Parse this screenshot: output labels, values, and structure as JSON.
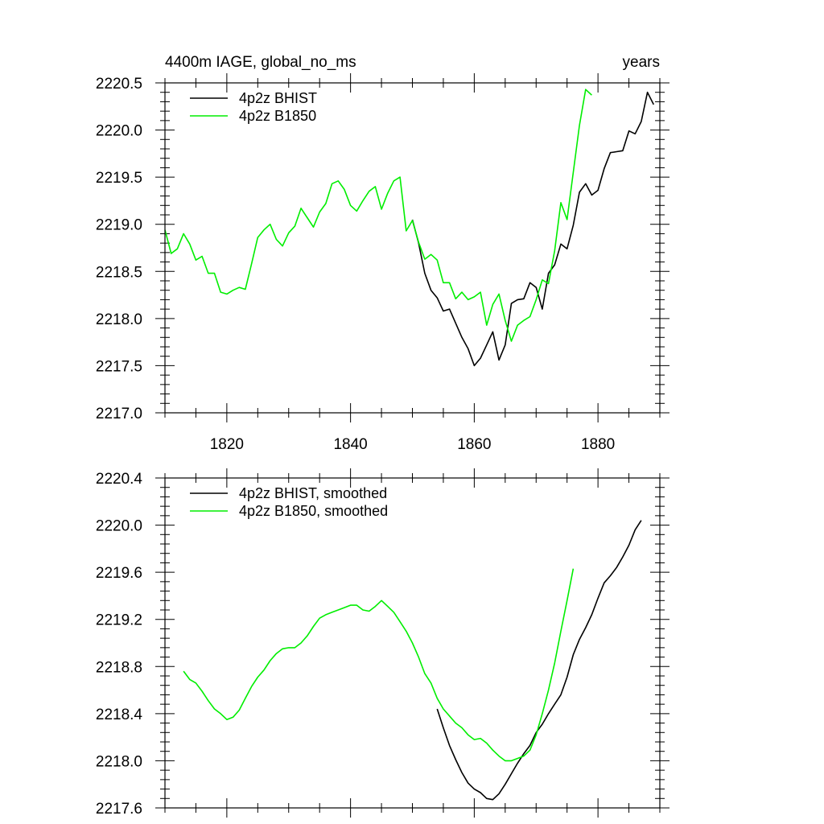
{
  "figure": {
    "title_left": "4400m IAGE, global_no_ms",
    "title_right": "years"
  },
  "colors": {
    "bhist": "#000000",
    "b1850": "#00ee00"
  },
  "chart_data": [
    {
      "type": "line",
      "title": "4400m IAGE, global_no_ms",
      "units": "years",
      "xlim": [
        1810,
        1890
      ],
      "ylim": [
        2217.0,
        2220.5
      ],
      "x_ticks": [
        1820,
        1840,
        1860,
        1880
      ],
      "x_tick_labels": [
        "1820",
        "1840",
        "1860",
        "1880"
      ],
      "y_ticks": [
        2217.0,
        2217.5,
        2218.0,
        2218.5,
        2219.0,
        2219.5,
        2220.0,
        2220.5
      ],
      "y_tick_labels": [
        "2217.0",
        "2217.5",
        "2218.0",
        "2218.5",
        "2219.0",
        "2219.5",
        "2220.0",
        "2220.5"
      ],
      "legend_position": "top-left",
      "series": [
        {
          "name": "4p2z BHIST",
          "x": [
            1850,
            1851,
            1852,
            1853,
            1854,
            1855,
            1856,
            1857,
            1858,
            1859,
            1860,
            1861,
            1862,
            1863,
            1864,
            1865,
            1866,
            1867,
            1868,
            1869,
            1870,
            1871,
            1872,
            1873,
            1874,
            1875,
            1876,
            1877,
            1878,
            1879,
            1880,
            1881,
            1882,
            1883,
            1884,
            1885,
            1886,
            1887,
            1888,
            1889
          ],
          "y": [
            2219.05,
            2218.8,
            2218.48,
            2218.3,
            2218.22,
            2218.08,
            2218.1,
            2217.95,
            2217.8,
            2217.68,
            2217.5,
            2217.58,
            2217.72,
            2217.86,
            2217.56,
            2217.72,
            2218.16,
            2218.2,
            2218.21,
            2218.38,
            2218.33,
            2218.1,
            2218.48,
            2218.57,
            2218.79,
            2218.74,
            2218.99,
            2219.34,
            2219.43,
            2219.31,
            2219.36,
            2219.59,
            2219.76,
            2219.77,
            2219.78,
            2219.99,
            2219.96,
            2220.09,
            2220.4,
            2220.27
          ]
        },
        {
          "name": "4p2z B1850",
          "x": [
            1810,
            1811,
            1812,
            1813,
            1814,
            1815,
            1816,
            1817,
            1818,
            1819,
            1820,
            1821,
            1822,
            1823,
            1824,
            1825,
            1826,
            1827,
            1828,
            1829,
            1830,
            1831,
            1832,
            1833,
            1834,
            1835,
            1836,
            1837,
            1838,
            1839,
            1840,
            1841,
            1842,
            1843,
            1844,
            1845,
            1846,
            1847,
            1848,
            1849,
            1850,
            1851,
            1852,
            1853,
            1854,
            1855,
            1856,
            1857,
            1858,
            1859,
            1860,
            1861,
            1862,
            1863,
            1864,
            1865,
            1866,
            1867,
            1868,
            1869,
            1870,
            1871,
            1872,
            1873,
            1874,
            1875,
            1876,
            1877,
            1878,
            1879
          ],
          "y": [
            2218.94,
            2218.69,
            2218.74,
            2218.9,
            2218.79,
            2218.62,
            2218.66,
            2218.48,
            2218.48,
            2218.28,
            2218.26,
            2218.3,
            2218.33,
            2218.31,
            2218.58,
            2218.86,
            2218.94,
            2219.0,
            2218.84,
            2218.77,
            2218.91,
            2218.98,
            2219.17,
            2219.07,
            2218.97,
            2219.13,
            2219.22,
            2219.43,
            2219.46,
            2219.37,
            2219.2,
            2219.14,
            2219.25,
            2219.35,
            2219.4,
            2219.16,
            2219.33,
            2219.46,
            2219.5,
            2218.93,
            2219.04,
            2218.81,
            2218.63,
            2218.68,
            2218.62,
            2218.38,
            2218.38,
            2218.21,
            2218.28,
            2218.2,
            2218.23,
            2218.28,
            2217.93,
            2218.15,
            2218.26,
            2217.98,
            2217.76,
            2217.93,
            2217.98,
            2218.02,
            2218.2,
            2218.41,
            2218.37,
            2218.72,
            2219.23,
            2219.05,
            2219.55,
            2220.05,
            2220.43,
            2220.37
          ]
        }
      ]
    },
    {
      "type": "line",
      "xlim": [
        1810,
        1890
      ],
      "ylim": [
        2217.6,
        2220.4
      ],
      "x_ticks": [
        1820,
        1840,
        1860,
        1880
      ],
      "x_tick_labels": [],
      "y_ticks": [
        2217.6,
        2218.0,
        2218.4,
        2218.8,
        2219.2,
        2219.6,
        2220.0,
        2220.4
      ],
      "y_tick_labels": [
        "2217.6",
        "2218.0",
        "2218.4",
        "2218.8",
        "2219.2",
        "2219.6",
        "2220.0",
        "2220.4"
      ],
      "legend_position": "top-left",
      "series": [
        {
          "name": "4p2z BHIST, smoothed",
          "x": [
            1854,
            1855,
            1856,
            1857,
            1858,
            1859,
            1860,
            1861,
            1862,
            1863,
            1864,
            1865,
            1866,
            1867,
            1868,
            1869,
            1870,
            1871,
            1872,
            1873,
            1874,
            1875,
            1876,
            1877,
            1878,
            1879,
            1880,
            1881,
            1882,
            1883,
            1884,
            1885,
            1886,
            1887
          ],
          "y": [
            2218.44,
            2218.28,
            2218.13,
            2218.01,
            2217.9,
            2217.81,
            2217.76,
            2217.73,
            2217.68,
            2217.67,
            2217.72,
            2217.8,
            2217.89,
            2217.98,
            2218.06,
            2218.13,
            2218.24,
            2218.31,
            2218.4,
            2218.48,
            2218.56,
            2218.71,
            2218.9,
            2219.03,
            2219.13,
            2219.24,
            2219.38,
            2219.51,
            2219.57,
            2219.64,
            2219.73,
            2219.83,
            2219.96,
            2220.04
          ]
        },
        {
          "name": "4p2z B1850, smoothed",
          "x": [
            1813,
            1814,
            1815,
            1816,
            1817,
            1818,
            1819,
            1820,
            1821,
            1822,
            1823,
            1824,
            1825,
            1826,
            1827,
            1828,
            1829,
            1830,
            1831,
            1832,
            1833,
            1834,
            1835,
            1836,
            1837,
            1838,
            1839,
            1840,
            1841,
            1842,
            1843,
            1844,
            1845,
            1846,
            1847,
            1848,
            1849,
            1850,
            1851,
            1852,
            1853,
            1854,
            1855,
            1856,
            1857,
            1858,
            1859,
            1860,
            1861,
            1862,
            1863,
            1864,
            1865,
            1866,
            1867,
            1868,
            1869,
            1870,
            1871,
            1872,
            1873,
            1874,
            1875,
            1876
          ],
          "y": [
            2218.76,
            2218.69,
            2218.66,
            2218.59,
            2218.51,
            2218.44,
            2218.4,
            2218.35,
            2218.37,
            2218.43,
            2218.53,
            2218.63,
            2218.71,
            2218.77,
            2218.85,
            2218.91,
            2218.95,
            2218.96,
            2218.96,
            2219.0,
            2219.06,
            2219.14,
            2219.21,
            2219.24,
            2219.26,
            2219.28,
            2219.3,
            2219.32,
            2219.32,
            2219.28,
            2219.27,
            2219.31,
            2219.36,
            2219.31,
            2219.26,
            2219.18,
            2219.1,
            2219.0,
            2218.88,
            2218.74,
            2218.66,
            2218.53,
            2218.44,
            2218.38,
            2218.32,
            2218.28,
            2218.22,
            2218.18,
            2218.19,
            2218.15,
            2218.09,
            2218.04,
            2218.0,
            2218.0,
            2218.02,
            2218.04,
            2218.09,
            2218.22,
            2218.4,
            2218.6,
            2218.83,
            2219.1,
            2219.36,
            2219.63
          ]
        }
      ]
    }
  ]
}
